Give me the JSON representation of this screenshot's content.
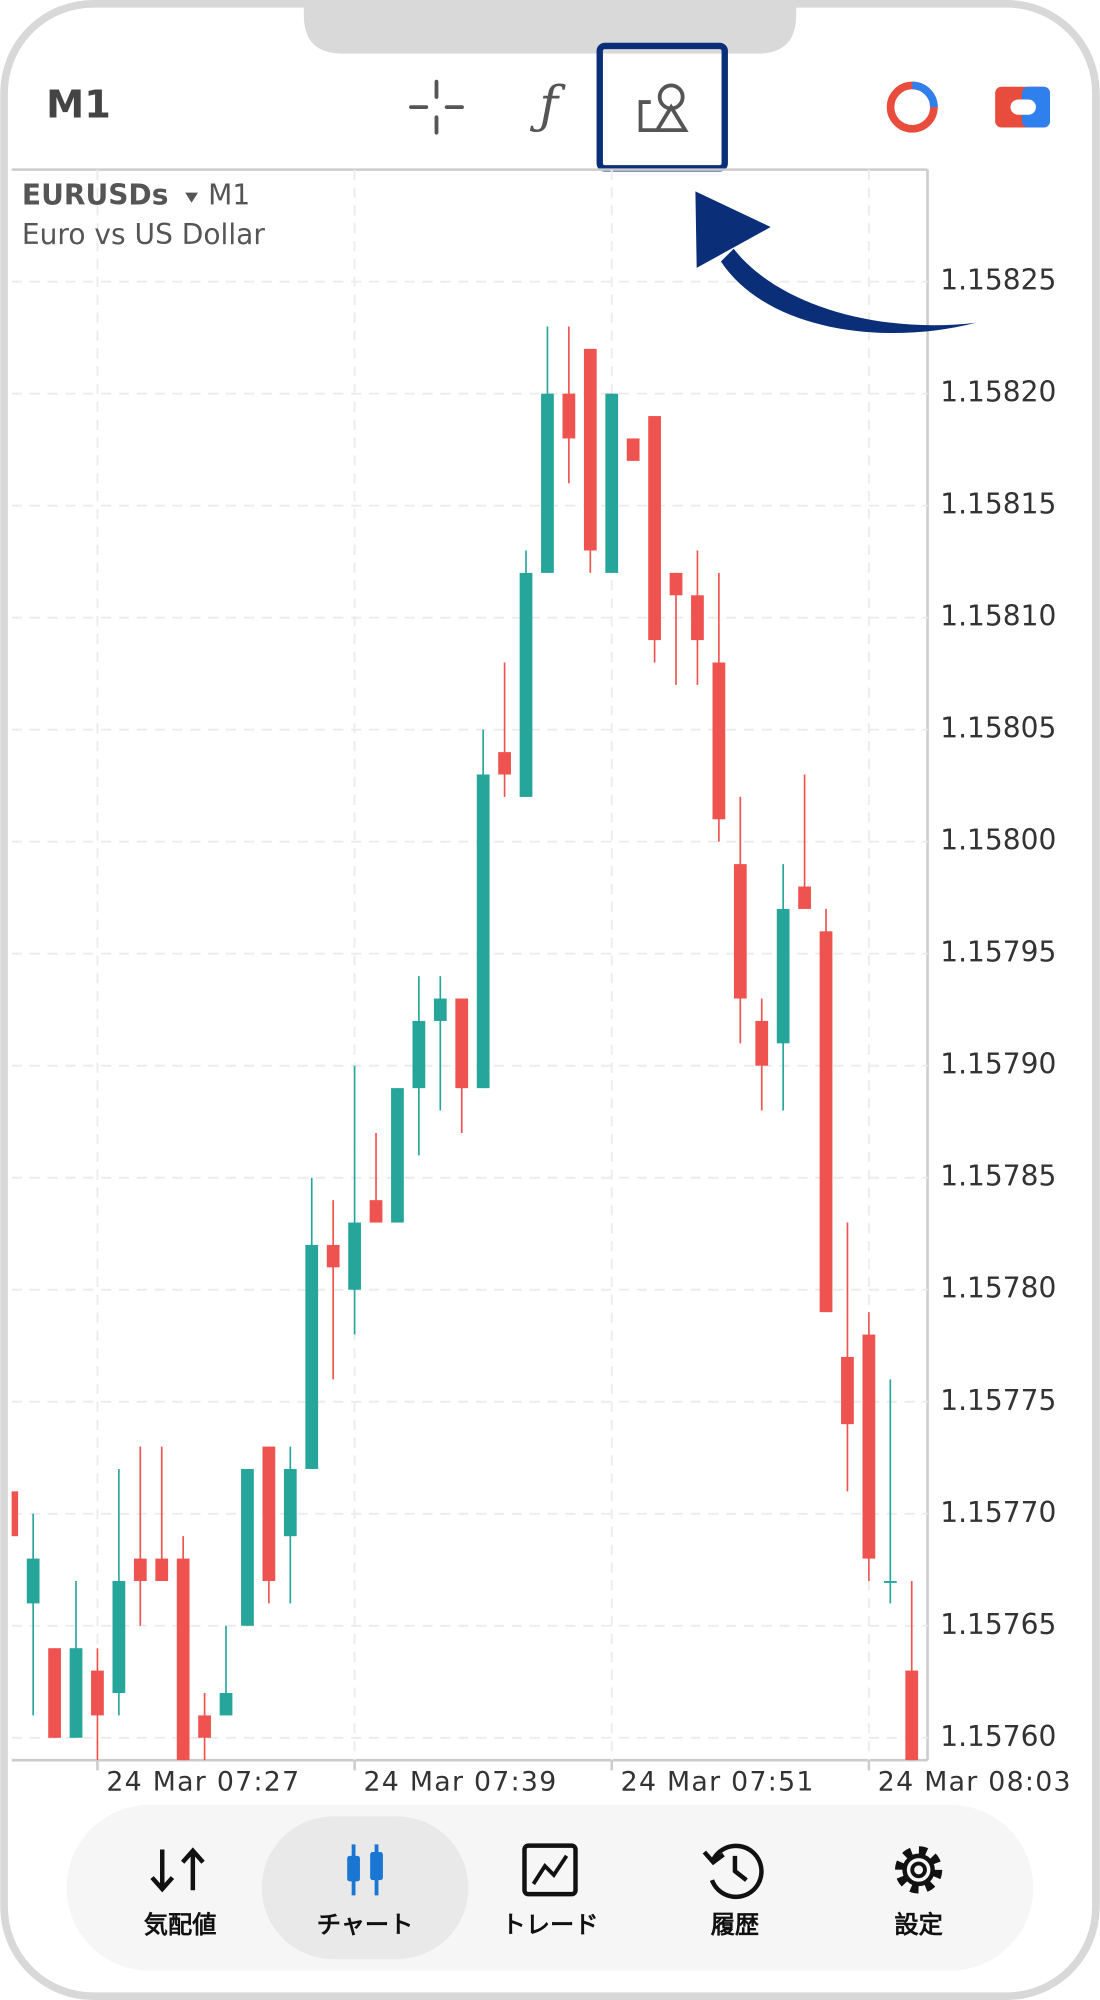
{
  "header": {
    "timeframe": "M1"
  },
  "chart_data": {
    "type": "candlestick",
    "symbol": "EURUSDs",
    "timeframe": "M1",
    "description": "Euro vs US Dollar",
    "up_color": "#26a69a",
    "down_color": "#ef5350",
    "grid": true,
    "categories": [
      null,
      null,
      null,
      null,
      "24 Mar 07:27",
      null,
      null,
      null,
      null,
      null,
      null,
      null,
      null,
      null,
      null,
      null,
      "24 Mar 07:39",
      null,
      null,
      null,
      null,
      null,
      null,
      null,
      null,
      null,
      null,
      null,
      "24 Mar 07:51",
      null,
      null,
      null,
      null,
      null,
      null,
      null,
      null,
      null,
      null,
      null,
      "24 Mar 08:03",
      null,
      null
    ],
    "open": [
      1.15771,
      1.15766,
      1.15764,
      1.1576,
      1.15763,
      1.15762,
      1.15768,
      1.15768,
      1.15768,
      1.15761,
      1.15761,
      1.15765,
      1.15773,
      1.15769,
      1.15772,
      1.15782,
      1.1578,
      1.15784,
      1.15783,
      1.15789,
      1.15792,
      1.15793,
      1.15789,
      1.15804,
      1.15802,
      1.15812,
      1.1582,
      1.15822,
      1.15812,
      1.15818,
      1.15819,
      1.15812,
      1.15811,
      1.15808,
      1.15799,
      1.15792,
      1.15791,
      1.15798,
      1.15796,
      1.15777,
      1.15778,
      1.15767,
      1.15763
    ],
    "high": [
      1.15771,
      1.1577,
      1.15764,
      1.15767,
      1.15764,
      1.15772,
      1.15773,
      1.15773,
      1.15769,
      1.15762,
      1.15765,
      1.15772,
      1.15773,
      1.15773,
      1.15785,
      1.15784,
      1.1579,
      1.15787,
      1.15789,
      1.15794,
      1.15794,
      1.15793,
      1.15805,
      1.15808,
      1.15813,
      1.15823,
      1.15823,
      1.15822,
      1.1582,
      1.15818,
      1.15819,
      1.15812,
      1.15813,
      1.15812,
      1.15802,
      1.15793,
      1.15799,
      1.15803,
      1.15797,
      1.15783,
      1.15779,
      1.15776,
      1.15767
    ],
    "low": [
      1.15769,
      1.15761,
      1.1576,
      1.1576,
      1.15759,
      1.15761,
      1.15765,
      1.15767,
      1.15759,
      1.15759,
      1.15761,
      1.15765,
      1.15766,
      1.15766,
      1.15772,
      1.15776,
      1.15778,
      1.15783,
      1.15783,
      1.15786,
      1.15788,
      1.15787,
      1.15789,
      1.15802,
      1.15802,
      1.15812,
      1.15816,
      1.15812,
      1.15812,
      1.15817,
      1.15808,
      1.15807,
      1.15807,
      1.158,
      1.15791,
      1.15788,
      1.15788,
      1.15797,
      1.15779,
      1.15771,
      1.15767,
      1.15766,
      1.15759
    ],
    "close": [
      1.15769,
      1.15768,
      1.1576,
      1.15764,
      1.15761,
      1.15767,
      1.15767,
      1.15767,
      1.15759,
      1.1576,
      1.15762,
      1.15772,
      1.15767,
      1.15772,
      1.15782,
      1.15781,
      1.15783,
      1.15783,
      1.15789,
      1.15792,
      1.15793,
      1.15789,
      1.15803,
      1.15803,
      1.15812,
      1.1582,
      1.15818,
      1.15813,
      1.1582,
      1.15817,
      1.15809,
      1.15811,
      1.15809,
      1.15801,
      1.15793,
      1.1579,
      1.15797,
      1.15797,
      1.15779,
      1.15774,
      1.15768,
      1.15767,
      1.15759
    ],
    "ylim": [
      1.15759,
      1.1583
    ],
    "yticks": [
      {
        "value": 1.1576,
        "label": "1.15760"
      },
      1.15765,
      {
        "value": 1.1577,
        "label": "1.15770"
      },
      1.15775,
      {
        "value": 1.1578,
        "label": "1.15780"
      },
      1.15785,
      {
        "value": 1.1579,
        "label": "1.15790"
      },
      1.15795,
      {
        "value": 1.158,
        "label": "1.15800"
      },
      1.15805,
      {
        "value": 1.1581,
        "label": "1.15810"
      },
      1.15815,
      {
        "value": 1.1582,
        "label": "1.15820"
      },
      1.15825
    ]
  },
  "nav": {
    "tabs": [
      "気配値",
      "チャート",
      "トレード",
      "履歴",
      "設定"
    ],
    "active": 1
  }
}
